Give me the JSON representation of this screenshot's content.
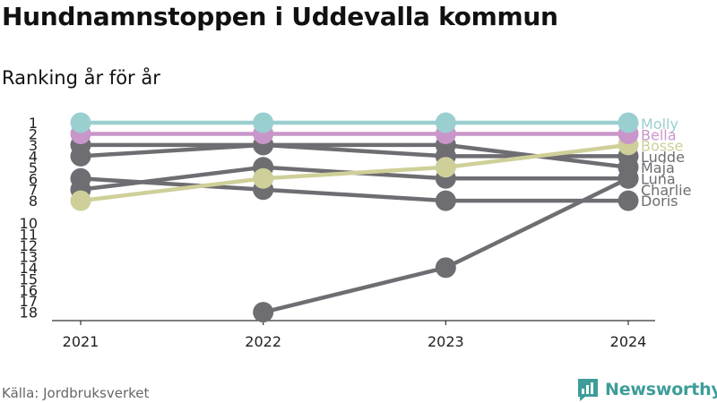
{
  "header": {
    "title": "Hundnamnstoppen i Uddevalla kommun",
    "subtitle": "Ranking år för år"
  },
  "footer": {
    "source": "Källa: Jordbruksverket",
    "brand": "Newsworthy",
    "brand_logo_icon": "bar-chart-logo-icon"
  },
  "chart_data": {
    "type": "line",
    "x": [
      "2021",
      "2022",
      "2023",
      "2024"
    ],
    "y_ticks": [
      "1",
      "2",
      "3",
      "4",
      "5",
      "6",
      "7",
      "8",
      "10",
      "11",
      "12",
      "13",
      "14",
      "15",
      "16",
      "17",
      "18"
    ],
    "y_reversed": true,
    "ylim": [
      1,
      18
    ],
    "grid": false,
    "default_color": "#6e6d72",
    "series": [
      {
        "name": "Luna",
        "values": [
          null,
          18,
          14,
          6
        ],
        "color": "#6e6d72"
      },
      {
        "name": "Charlie",
        "values": [
          7,
          5,
          6,
          6
        ],
        "color": "#6e6d72"
      },
      {
        "name": "Doris",
        "values": [
          6,
          7,
          8,
          8
        ],
        "color": "#6e6d72"
      },
      {
        "name": "Maja",
        "values": [
          3,
          3,
          3,
          5
        ],
        "color": "#6e6d72"
      },
      {
        "name": "Ludde",
        "values": [
          4,
          3,
          4,
          4
        ],
        "color": "#6e6d72"
      },
      {
        "name": "Bosse",
        "values": [
          8,
          6,
          5,
          3
        ],
        "color": "#cfcf99"
      },
      {
        "name": "Bella",
        "values": [
          2,
          2,
          2,
          2
        ],
        "color": "#c996c9"
      },
      {
        "name": "Molly",
        "values": [
          1,
          1,
          1,
          1
        ],
        "color": "#9acfd0"
      }
    ],
    "label_order": [
      "Molly",
      "Bella",
      "Bosse",
      "Ludde",
      "Maja",
      "Luna",
      "Charlie",
      "Doris"
    ]
  }
}
